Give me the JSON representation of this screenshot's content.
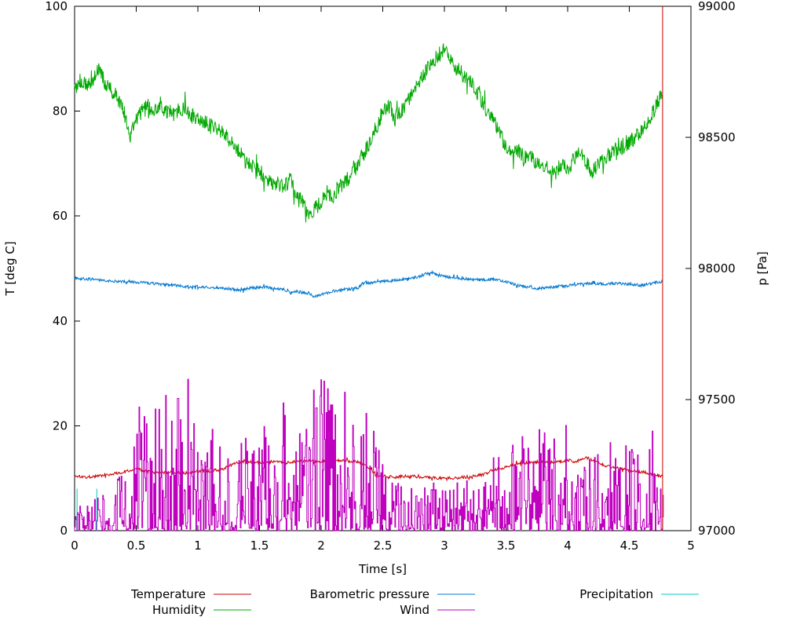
{
  "chart_data": {
    "type": "line",
    "title": "",
    "xlabel": "Time [s]",
    "ylabel_left": "T [deg C]",
    "ylabel_right": "p [Pa]",
    "xlim": [
      0,
      5
    ],
    "ylim_left": [
      0,
      100
    ],
    "ylim_right": [
      97000,
      99000
    ],
    "grid": false,
    "legend_position": "bottom",
    "noise_seed": 1337,
    "x_ticks": {
      "values": [
        0,
        0.5,
        1,
        1.5,
        2,
        2.5,
        3,
        3.5,
        4,
        4.5,
        5
      ],
      "labels": [
        "0",
        "0.5",
        "1",
        "1.5",
        "2",
        "2.5",
        "3",
        "3.5",
        "4",
        "4.5",
        "5"
      ]
    },
    "y_ticks_left": {
      "values": [
        0,
        20,
        40,
        60,
        80,
        100
      ],
      "labels": [
        "0",
        "20",
        "40",
        "60",
        "80",
        "100"
      ]
    },
    "y_ticks_right": {
      "values": [
        97000,
        97500,
        98000,
        98500,
        99000
      ],
      "labels": [
        "97000",
        "97500",
        "98000",
        "98500",
        "99000"
      ]
    },
    "series": [
      {
        "name": "Temperature",
        "color": "#cc0000",
        "axis": "left",
        "style": "noisy-line",
        "noise": 0.28,
        "sample_dt": 0.005,
        "keypoints": [
          [
            0,
            10.4
          ],
          [
            0.1,
            10.2
          ],
          [
            0.2,
            10.5
          ],
          [
            0.3,
            10.8
          ],
          [
            0.4,
            11.2
          ],
          [
            0.5,
            11.9
          ],
          [
            0.55,
            11.4
          ],
          [
            0.6,
            11.2
          ],
          [
            0.7,
            11.0
          ],
          [
            0.8,
            11.2
          ],
          [
            0.9,
            11.0
          ],
          [
            1.0,
            11.3
          ],
          [
            1.1,
            11.4
          ],
          [
            1.2,
            11.7
          ],
          [
            1.3,
            12.9
          ],
          [
            1.4,
            13.2
          ],
          [
            1.5,
            13.0
          ],
          [
            1.6,
            13.2
          ],
          [
            1.7,
            13.0
          ],
          [
            1.8,
            13.2
          ],
          [
            1.9,
            13.3
          ],
          [
            2.0,
            13.1
          ],
          [
            2.1,
            13.4
          ],
          [
            2.2,
            13.3
          ],
          [
            2.3,
            13.2
          ],
          [
            2.4,
            11.8
          ],
          [
            2.45,
            10.6
          ],
          [
            2.5,
            10.4
          ],
          [
            2.6,
            10.2
          ],
          [
            2.7,
            10.4
          ],
          [
            2.8,
            10.2
          ],
          [
            2.9,
            10.1
          ],
          [
            3.0,
            9.9
          ],
          [
            3.1,
            10.1
          ],
          [
            3.2,
            10.3
          ],
          [
            3.3,
            10.6
          ],
          [
            3.4,
            11.6
          ],
          [
            3.5,
            12.1
          ],
          [
            3.6,
            12.9
          ],
          [
            3.7,
            13.0
          ],
          [
            3.8,
            13.2
          ],
          [
            3.9,
            13.0
          ],
          [
            4.0,
            13.5
          ],
          [
            4.05,
            13.2
          ],
          [
            4.1,
            13.4
          ],
          [
            4.15,
            14.0
          ],
          [
            4.2,
            13.4
          ],
          [
            4.3,
            12.4
          ],
          [
            4.4,
            12.0
          ],
          [
            4.5,
            11.5
          ],
          [
            4.6,
            11.2
          ],
          [
            4.7,
            10.8
          ],
          [
            4.77,
            10.4
          ]
        ]
      },
      {
        "name": "Humidity",
        "color": "#00a800",
        "axis": "left",
        "style": "noisy-line",
        "noise": 1.5,
        "sample_dt": 0.004,
        "keypoints": [
          [
            0,
            84
          ],
          [
            0.05,
            86
          ],
          [
            0.1,
            85
          ],
          [
            0.15,
            86.5
          ],
          [
            0.2,
            88
          ],
          [
            0.25,
            85
          ],
          [
            0.3,
            84
          ],
          [
            0.35,
            82.5
          ],
          [
            0.4,
            80
          ],
          [
            0.45,
            75
          ],
          [
            0.5,
            78.5
          ],
          [
            0.55,
            80
          ],
          [
            0.6,
            81
          ],
          [
            0.65,
            80
          ],
          [
            0.7,
            81.5
          ],
          [
            0.75,
            80
          ],
          [
            0.8,
            79.5
          ],
          [
            0.85,
            80.5
          ],
          [
            0.9,
            80.5
          ],
          [
            0.95,
            79
          ],
          [
            1.0,
            79
          ],
          [
            1.1,
            77.5
          ],
          [
            1.2,
            76
          ],
          [
            1.3,
            73.5
          ],
          [
            1.4,
            70
          ],
          [
            1.5,
            68.5
          ],
          [
            1.6,
            66.5
          ],
          [
            1.7,
            65.5
          ],
          [
            1.75,
            67
          ],
          [
            1.8,
            64
          ],
          [
            1.85,
            62.5
          ],
          [
            1.9,
            60.5
          ],
          [
            1.95,
            61.5
          ],
          [
            2.0,
            62.5
          ],
          [
            2.05,
            64.5
          ],
          [
            2.1,
            64
          ],
          [
            2.15,
            65.5
          ],
          [
            2.2,
            66.5
          ],
          [
            2.25,
            68
          ],
          [
            2.3,
            70
          ],
          [
            2.35,
            72
          ],
          [
            2.4,
            74.5
          ],
          [
            2.45,
            77
          ],
          [
            2.5,
            80
          ],
          [
            2.55,
            81
          ],
          [
            2.6,
            78.5
          ],
          [
            2.65,
            80
          ],
          [
            2.7,
            82
          ],
          [
            2.75,
            84
          ],
          [
            2.8,
            86
          ],
          [
            2.85,
            87.5
          ],
          [
            2.9,
            89.5
          ],
          [
            2.95,
            90.5
          ],
          [
            3.0,
            92
          ],
          [
            3.05,
            90
          ],
          [
            3.1,
            88
          ],
          [
            3.15,
            87
          ],
          [
            3.2,
            86
          ],
          [
            3.25,
            84.5
          ],
          [
            3.3,
            82
          ],
          [
            3.35,
            80
          ],
          [
            3.4,
            78
          ],
          [
            3.45,
            75.5
          ],
          [
            3.5,
            73.5
          ],
          [
            3.55,
            72
          ],
          [
            3.6,
            72.5
          ],
          [
            3.65,
            71
          ],
          [
            3.7,
            71.5
          ],
          [
            3.75,
            70
          ],
          [
            3.8,
            70
          ],
          [
            3.85,
            69
          ],
          [
            3.9,
            68
          ],
          [
            3.95,
            70
          ],
          [
            4.0,
            69
          ],
          [
            4.05,
            71
          ],
          [
            4.1,
            72
          ],
          [
            4.15,
            70
          ],
          [
            4.2,
            68.5
          ],
          [
            4.25,
            70
          ],
          [
            4.3,
            71
          ],
          [
            4.35,
            72
          ],
          [
            4.4,
            72
          ],
          [
            4.45,
            73
          ],
          [
            4.5,
            74
          ],
          [
            4.55,
            75
          ],
          [
            4.6,
            76.5
          ],
          [
            4.65,
            78
          ],
          [
            4.7,
            80
          ],
          [
            4.77,
            84
          ]
        ]
      },
      {
        "name": "Barometric pressure",
        "color": "#0078d0",
        "axis": "right",
        "style": "noisy-line",
        "noise": 5.5,
        "sample_dt": 0.004,
        "keypoints": [
          [
            0,
            97962
          ],
          [
            0.1,
            97960
          ],
          [
            0.2,
            97956
          ],
          [
            0.3,
            97952
          ],
          [
            0.4,
            97950
          ],
          [
            0.5,
            97948
          ],
          [
            0.6,
            97944
          ],
          [
            0.7,
            97940
          ],
          [
            0.8,
            97936
          ],
          [
            0.9,
            97932
          ],
          [
            1.0,
            97930
          ],
          [
            1.1,
            97928
          ],
          [
            1.2,
            97925
          ],
          [
            1.3,
            97920
          ],
          [
            1.35,
            97916
          ],
          [
            1.4,
            97924
          ],
          [
            1.5,
            97930
          ],
          [
            1.6,
            97926
          ],
          [
            1.7,
            97920
          ],
          [
            1.75,
            97906
          ],
          [
            1.8,
            97912
          ],
          [
            1.9,
            97906
          ],
          [
            1.95,
            97892
          ],
          [
            2.0,
            97900
          ],
          [
            2.1,
            97914
          ],
          [
            2.2,
            97920
          ],
          [
            2.3,
            97926
          ],
          [
            2.35,
            97948
          ],
          [
            2.4,
            97944
          ],
          [
            2.5,
            97950
          ],
          [
            2.6,
            97954
          ],
          [
            2.7,
            97960
          ],
          [
            2.8,
            97970
          ],
          [
            2.85,
            97980
          ],
          [
            2.9,
            97986
          ],
          [
            2.95,
            97976
          ],
          [
            3.0,
            97970
          ],
          [
            3.1,
            97964
          ],
          [
            3.2,
            97960
          ],
          [
            3.3,
            97956
          ],
          [
            3.4,
            97960
          ],
          [
            3.5,
            97950
          ],
          [
            3.55,
            97942
          ],
          [
            3.6,
            97936
          ],
          [
            3.7,
            97930
          ],
          [
            3.75,
            97922
          ],
          [
            3.8,
            97926
          ],
          [
            3.9,
            97930
          ],
          [
            4.0,
            97934
          ],
          [
            4.1,
            97940
          ],
          [
            4.2,
            97944
          ],
          [
            4.3,
            97940
          ],
          [
            4.4,
            97944
          ],
          [
            4.5,
            97940
          ],
          [
            4.6,
            97936
          ],
          [
            4.7,
            97944
          ],
          [
            4.77,
            97950
          ]
        ]
      },
      {
        "name": "Wind",
        "color": "#bf00bf",
        "axis": "left",
        "style": "spiky",
        "spike_power": 2.3,
        "sample_dt": 0.006,
        "keypoints": [
          [
            0,
            7
          ],
          [
            0.1,
            6
          ],
          [
            0.2,
            7
          ],
          [
            0.3,
            8
          ],
          [
            0.4,
            12
          ],
          [
            0.45,
            20
          ],
          [
            0.5,
            25
          ],
          [
            0.55,
            22
          ],
          [
            0.6,
            22
          ],
          [
            0.65,
            24
          ],
          [
            0.7,
            25
          ],
          [
            0.75,
            28
          ],
          [
            0.8,
            30
          ],
          [
            0.85,
            32
          ],
          [
            0.9,
            34
          ],
          [
            0.95,
            26
          ],
          [
            1.0,
            25
          ],
          [
            1.1,
            21
          ],
          [
            1.2,
            18
          ],
          [
            1.3,
            20
          ],
          [
            1.4,
            18
          ],
          [
            1.5,
            20
          ],
          [
            1.6,
            22
          ],
          [
            1.7,
            25
          ],
          [
            1.8,
            21
          ],
          [
            1.9,
            26
          ],
          [
            2.0,
            30
          ],
          [
            2.1,
            30
          ],
          [
            2.2,
            28
          ],
          [
            2.3,
            28
          ],
          [
            2.4,
            22
          ],
          [
            2.5,
            13
          ],
          [
            2.6,
            10
          ],
          [
            2.7,
            10
          ],
          [
            2.8,
            9
          ],
          [
            2.9,
            10
          ],
          [
            3.0,
            9
          ],
          [
            3.1,
            12
          ],
          [
            3.2,
            10
          ],
          [
            3.3,
            9
          ],
          [
            3.4,
            16
          ],
          [
            3.5,
            25
          ],
          [
            3.6,
            20
          ],
          [
            3.7,
            18
          ],
          [
            3.8,
            20
          ],
          [
            3.9,
            21
          ],
          [
            4.0,
            20
          ],
          [
            4.1,
            18
          ],
          [
            4.2,
            21
          ],
          [
            4.3,
            18
          ],
          [
            4.4,
            16
          ],
          [
            4.5,
            18
          ],
          [
            4.6,
            16
          ],
          [
            4.7,
            20
          ],
          [
            4.78,
            12
          ]
        ]
      },
      {
        "name": "Precipitation",
        "color": "#00c8c8",
        "axis": "left",
        "style": "segments",
        "segments": [
          [
            0.02,
            0,
            8
          ],
          [
            0.18,
            0,
            8
          ]
        ]
      }
    ],
    "annotations": [
      {
        "type": "vline",
        "x": 4.77,
        "y0": 0,
        "y1": 100,
        "axis": "left",
        "color": "#cc0000"
      }
    ]
  }
}
